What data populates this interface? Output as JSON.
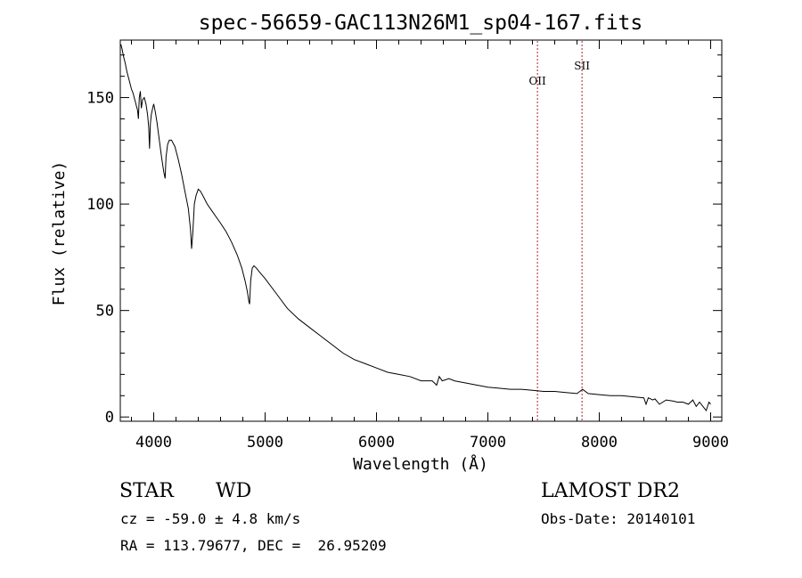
{
  "chart_data": {
    "type": "line",
    "title": "spec-56659-GAC113N26M1_sp04-167.fits",
    "xlabel": "Wavelength (Å)",
    "ylabel": "Flux (relative)",
    "xlim": [
      3700,
      9100
    ],
    "ylim": [
      -2,
      177
    ],
    "xticks": [
      4000,
      5000,
      6000,
      7000,
      8000,
      9000
    ],
    "yticks": [
      0,
      50,
      100,
      150
    ],
    "grid": false,
    "series": [
      {
        "x": [
          3705,
          3715,
          3730,
          3745,
          3760,
          3775,
          3790,
          3800,
          3815,
          3825,
          3835,
          3845,
          3855,
          3862,
          3870,
          3880,
          3889,
          3900,
          3915,
          3930,
          3945,
          3955,
          3962,
          3970,
          3978,
          3990,
          4000,
          4015,
          4030,
          4050,
          4070,
          4090,
          4102,
          4110,
          4125,
          4140,
          4160,
          4190,
          4220,
          4250,
          4280,
          4310,
          4330,
          4340,
          4350,
          4365,
          4380,
          4400,
          4420,
          4450,
          4480,
          4520,
          4560,
          4600,
          4650,
          4700,
          4750,
          4790,
          4820,
          4840,
          4855,
          4861,
          4870,
          4885,
          4900,
          4920,
          4950,
          5000,
          5100,
          5200,
          5300,
          5400,
          5500,
          5600,
          5700,
          5800,
          5900,
          6000,
          6100,
          6200,
          6300,
          6400,
          6500,
          6540,
          6563,
          6590,
          6650,
          6700,
          6800,
          6900,
          7000,
          7100,
          7200,
          7300,
          7400,
          7500,
          7600,
          7700,
          7800,
          7850,
          7900,
          8000,
          8100,
          8200,
          8300,
          8400,
          8420,
          8440,
          8480,
          8500,
          8540,
          8600,
          8660,
          8700,
          8750,
          8800,
          8840,
          8870,
          8900,
          8930,
          8960,
          8985,
          9000
        ],
        "y": [
          175,
          173,
          169,
          166,
          162,
          159,
          156,
          154,
          152,
          150,
          148,
          146,
          144,
          140,
          150,
          153,
          145,
          149,
          150,
          147,
          142,
          136,
          126,
          138,
          142,
          145,
          147,
          143,
          138,
          130,
          122,
          115,
          112,
          122,
          128,
          130,
          130,
          127,
          121,
          114,
          106,
          98,
          88,
          79,
          86,
          100,
          104,
          107,
          106,
          103,
          100,
          97,
          94,
          91,
          87,
          82,
          76,
          70,
          64,
          59,
          54,
          53,
          64,
          70,
          71,
          70,
          68,
          65,
          58,
          51,
          46,
          42,
          38,
          34,
          30,
          27,
          25,
          23,
          21,
          20,
          19,
          17,
          17,
          15,
          19,
          17,
          18,
          17,
          16,
          15,
          14,
          13.5,
          13,
          13,
          12.5,
          12,
          12,
          11.5,
          11,
          13,
          11,
          10.5,
          10,
          10,
          9.5,
          9,
          6,
          9,
          8,
          8.5,
          6,
          8,
          7.5,
          7,
          7,
          6,
          8,
          5,
          7,
          5,
          3,
          7,
          6
        ]
      }
    ],
    "annotations": [
      {
        "label": "OII",
        "x": 7445
      },
      {
        "label": "SII",
        "x": 7845
      }
    ]
  },
  "footer": {
    "object_class": "STAR",
    "subclass": "WD",
    "survey": "LAMOST DR2",
    "velocity": "cz = -59.0 ± 4.8 km/s",
    "obs_date": "Obs-Date: 20140101",
    "coords": "RA = 113.79677, DEC =  26.95209"
  },
  "colors": {
    "axis": "#000000",
    "spectrum": "#000000",
    "line_markers": "#b22222",
    "background": "#ffffff"
  }
}
